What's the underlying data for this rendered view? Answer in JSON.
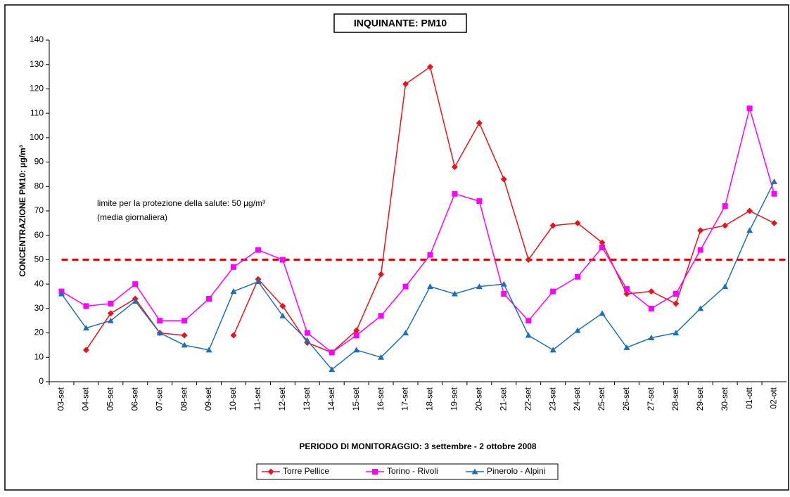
{
  "chart_data": {
    "type": "line",
    "title": "INQUINANTE: PM10",
    "ylabel": "CONCENTRAZIONE PM10: µg/m³",
    "xlabel": "PERIODO DI MONITORAGGIO: 3 settembre - 2 ottobre 2008",
    "annotations": [
      "limite per la protezione della salute: 50 µg/m³",
      "(media giornaliera)"
    ],
    "limit": 50,
    "limit_color": "#dd0000",
    "categories": [
      "03-set",
      "04-set",
      "05-set",
      "06-set",
      "07-set",
      "08-set",
      "09-set",
      "10-set",
      "11-set",
      "12-set",
      "13-set",
      "14-set",
      "15-set",
      "16-set",
      "17-set",
      "18-set",
      "19-set",
      "20-set",
      "21-set",
      "22-set",
      "23-set",
      "24-set",
      "25-set",
      "26-set",
      "27-set",
      "28-set",
      "29-set",
      "30-set",
      "01-ott",
      "02-ott"
    ],
    "series": [
      {
        "name": "Torre Pellice",
        "color": "#e8141b",
        "marker": "diamond",
        "values": [
          null,
          13,
          28,
          34,
          20,
          19,
          null,
          19,
          42,
          31,
          16,
          12,
          21,
          44,
          122,
          129,
          88,
          106,
          83,
          50,
          64,
          65,
          57,
          36,
          37,
          32,
          62,
          64,
          70,
          65
        ]
      },
      {
        "name": "Torino - Rivoli",
        "color": "#ff00ff",
        "marker": "square",
        "values": [
          37,
          31,
          32,
          40,
          25,
          25,
          34,
          47,
          54,
          50,
          20,
          12,
          19,
          27,
          39,
          52,
          77,
          74,
          36,
          25,
          37,
          43,
          55,
          38,
          30,
          36,
          54,
          72,
          112,
          77
        ]
      },
      {
        "name": "Pinerolo - Alpini",
        "color": "#1f6fb4",
        "marker": "triangle",
        "values": [
          36,
          22,
          25,
          33,
          20,
          15,
          13,
          37,
          41,
          27,
          17,
          5,
          13,
          10,
          20,
          39,
          36,
          39,
          40,
          19,
          13,
          21,
          28,
          14,
          18,
          20,
          30,
          39,
          62,
          82
        ]
      }
    ],
    "ylim": [
      0,
      140
    ],
    "yticks": [
      0,
      10,
      20,
      30,
      40,
      50,
      60,
      70,
      80,
      90,
      100,
      110,
      120,
      130,
      140
    ],
    "grid": false,
    "legend": "bottom"
  }
}
